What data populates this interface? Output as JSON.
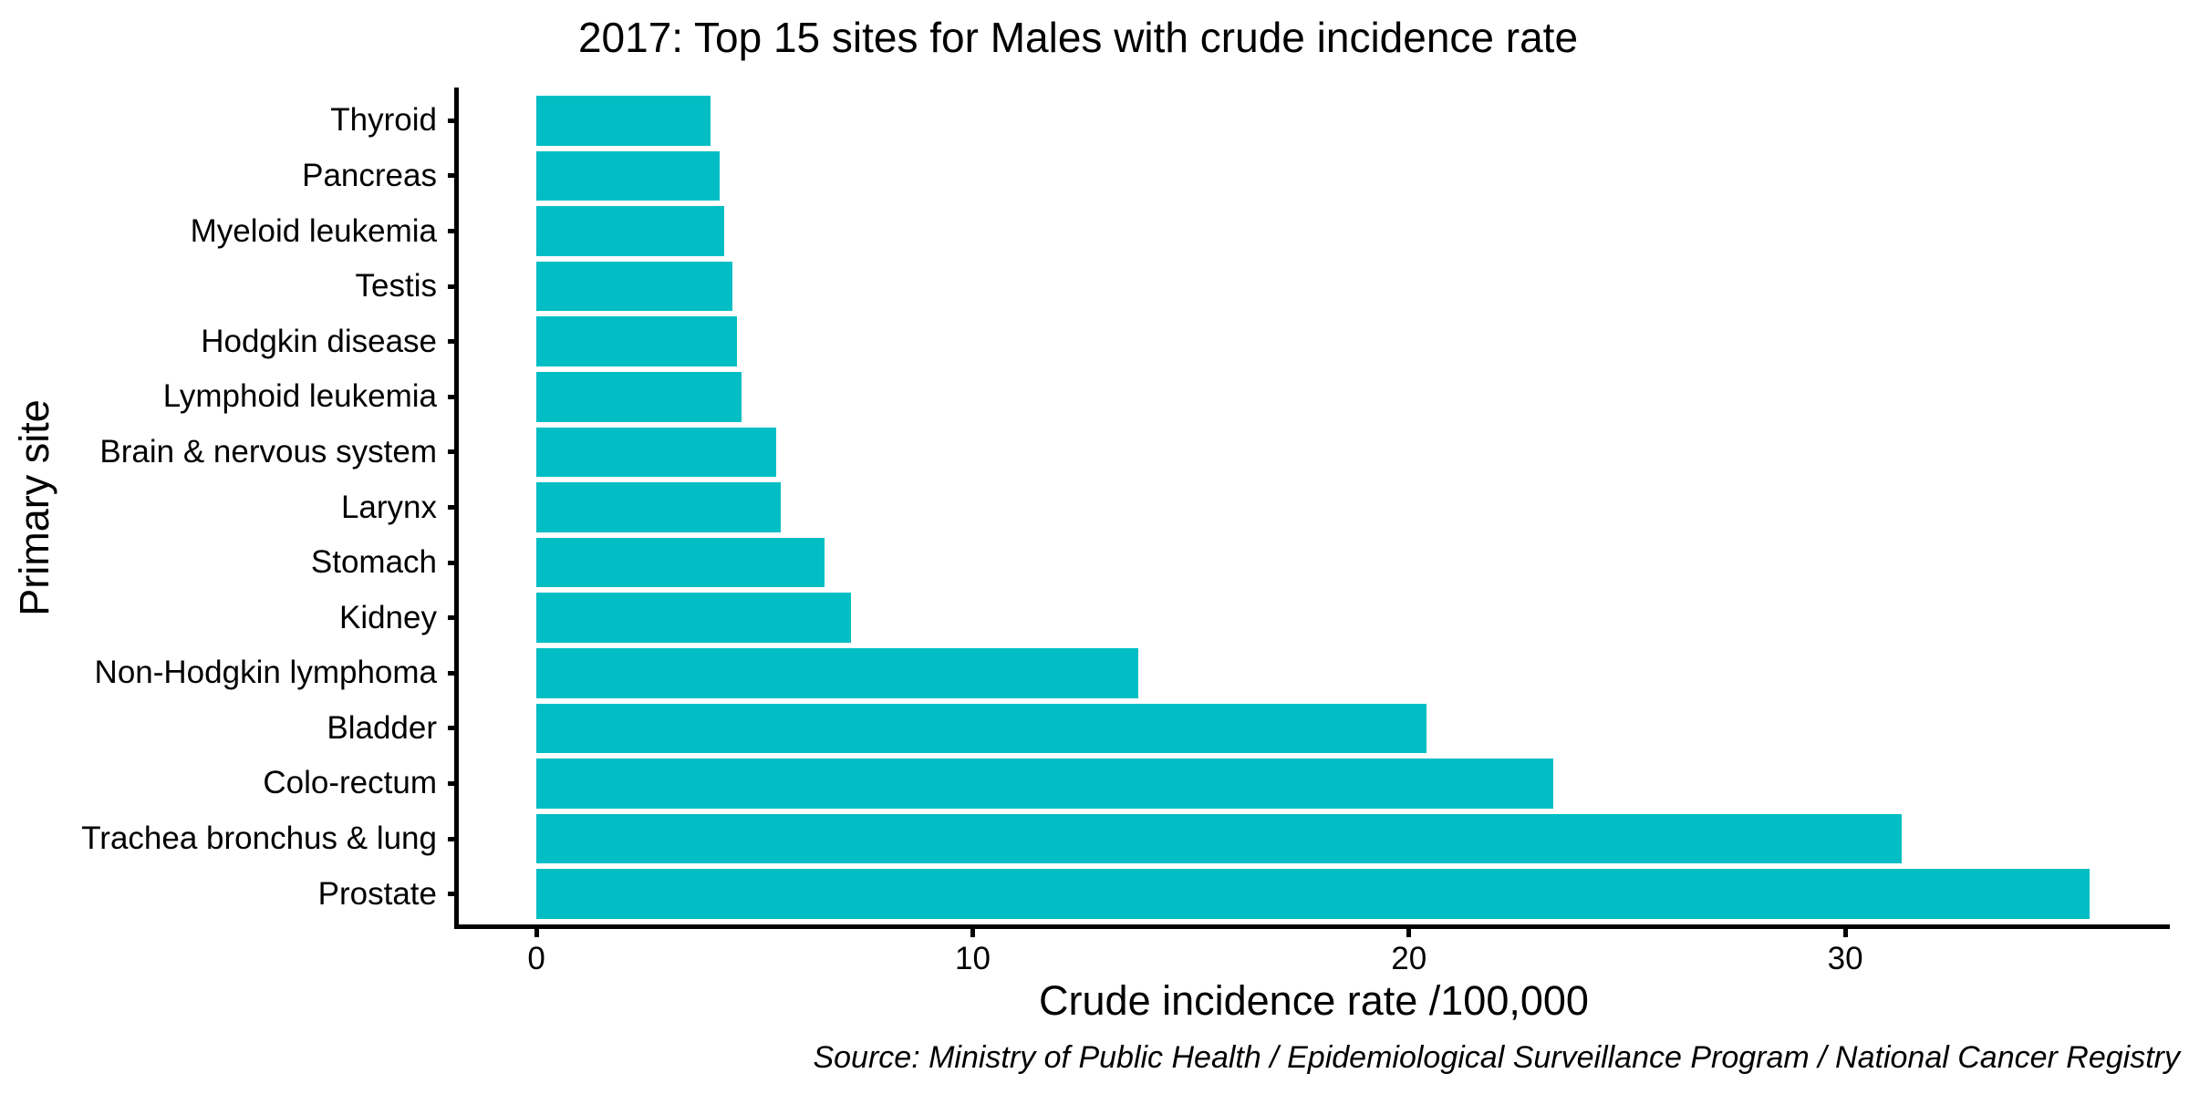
{
  "chart_data": {
    "type": "bar",
    "orientation": "horizontal",
    "title": "2017: Top 15 sites for Males with crude incidence rate",
    "xlabel": "Crude incidence rate /100,000",
    "ylabel": "Primary site",
    "source": "Source: Ministry of Public Health / Epidemiological Surveillance Program / National Cancer Registry",
    "categories_top_to_bottom": [
      "Thyroid",
      "Pancreas",
      "Myeloid leukemia",
      "Testis",
      "Hodgkin disease",
      "Lymphoid leukemia",
      "Brain & nervous system",
      "Larynx",
      "Stomach",
      "Kidney",
      "Non-Hodgkin lymphoma",
      "Bladder",
      "Colo-rectum",
      "Trachea bronchus & lung",
      "Prostate"
    ],
    "values": [
      4.0,
      4.2,
      4.3,
      4.5,
      4.6,
      4.7,
      5.5,
      5.6,
      6.6,
      7.2,
      13.8,
      20.4,
      23.3,
      31.3,
      35.6
    ],
    "x_ticks": [
      0,
      10,
      20,
      30
    ],
    "xlim": [
      -1.78,
      37.42
    ],
    "grid": "off",
    "legend": "none",
    "bar_color": "#00BEC4",
    "axis_color": "#000000",
    "text_color": "#000000"
  }
}
